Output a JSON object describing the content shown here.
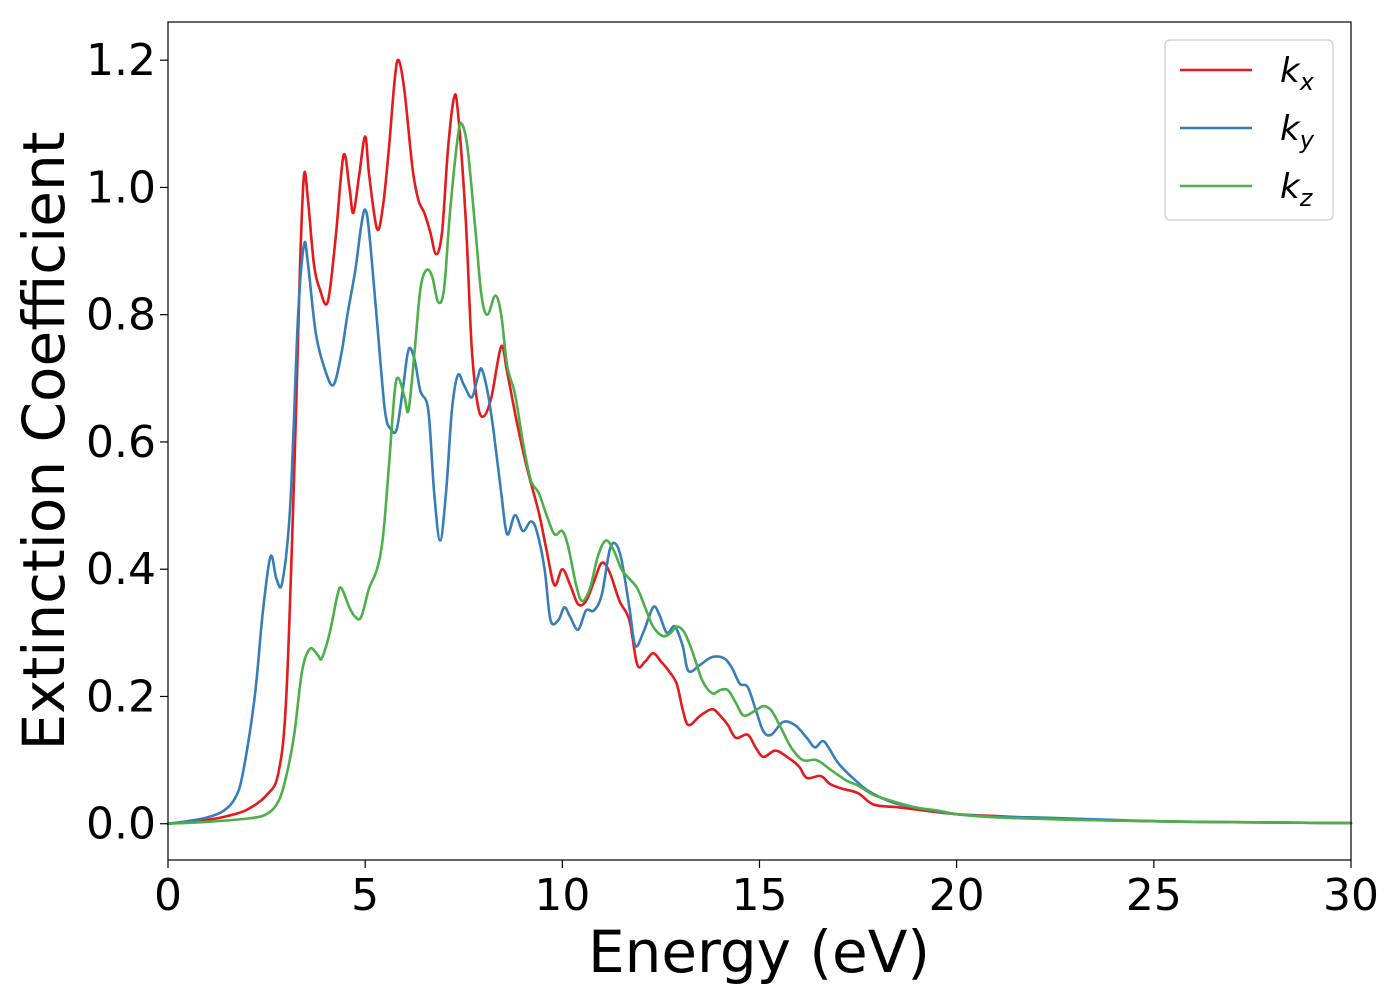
{
  "chart_data": {
    "type": "line",
    "title": "",
    "xlabel": "Energy (eV)",
    "ylabel": "Extinction Coefficient",
    "xlim": [
      0,
      30
    ],
    "ylim": [
      -0.057,
      1.26
    ],
    "x_ticks": [
      0,
      5,
      10,
      15,
      20,
      25,
      30
    ],
    "x_tick_labels": [
      "0",
      "5",
      "10",
      "15",
      "20",
      "25",
      "30"
    ],
    "y_ticks": [
      0.0,
      0.2,
      0.4,
      0.6,
      0.8,
      1.0,
      1.2
    ],
    "y_tick_labels": [
      "0.0",
      "0.2",
      "0.4",
      "0.6",
      "0.8",
      "1.0",
      "1.2"
    ],
    "grid": false,
    "legend_position": "top-right",
    "series": [
      {
        "name": "kx",
        "legend_base": "k",
        "legend_sub": "x",
        "color": "#e41a1c",
        "points": [
          [
            0,
            0
          ],
          [
            1,
            0.006
          ],
          [
            1.5,
            0.012
          ],
          [
            2,
            0.022
          ],
          [
            2.5,
            0.045
          ],
          [
            2.8,
            0.08
          ],
          [
            3.0,
            0.2
          ],
          [
            3.2,
            0.55
          ],
          [
            3.35,
            0.88
          ],
          [
            3.45,
            1.02
          ],
          [
            3.55,
            0.98
          ],
          [
            3.7,
            0.88
          ],
          [
            3.85,
            0.84
          ],
          [
            4.05,
            0.82
          ],
          [
            4.25,
            0.92
          ],
          [
            4.45,
            1.05
          ],
          [
            4.6,
            1.0
          ],
          [
            4.7,
            0.96
          ],
          [
            4.85,
            1.02
          ],
          [
            5.0,
            1.08
          ],
          [
            5.1,
            1.02
          ],
          [
            5.3,
            0.935
          ],
          [
            5.45,
            0.97
          ],
          [
            5.6,
            1.06
          ],
          [
            5.75,
            1.17
          ],
          [
            5.85,
            1.2
          ],
          [
            6.0,
            1.15
          ],
          [
            6.2,
            1.03
          ],
          [
            6.35,
            0.98
          ],
          [
            6.5,
            0.96
          ],
          [
            6.65,
            0.93
          ],
          [
            6.8,
            0.895
          ],
          [
            6.95,
            0.93
          ],
          [
            7.1,
            1.06
          ],
          [
            7.25,
            1.14
          ],
          [
            7.35,
            1.12
          ],
          [
            7.55,
            0.95
          ],
          [
            7.7,
            0.75
          ],
          [
            7.85,
            0.66
          ],
          [
            8.0,
            0.64
          ],
          [
            8.2,
            0.67
          ],
          [
            8.45,
            0.75
          ],
          [
            8.6,
            0.71
          ],
          [
            8.85,
            0.63
          ],
          [
            9.1,
            0.56
          ],
          [
            9.4,
            0.49
          ],
          [
            9.6,
            0.43
          ],
          [
            9.8,
            0.375
          ],
          [
            10.0,
            0.4
          ],
          [
            10.2,
            0.375
          ],
          [
            10.4,
            0.345
          ],
          [
            10.6,
            0.35
          ],
          [
            10.8,
            0.38
          ],
          [
            11.0,
            0.41
          ],
          [
            11.2,
            0.395
          ],
          [
            11.45,
            0.35
          ],
          [
            11.7,
            0.32
          ],
          [
            11.9,
            0.25
          ],
          [
            12.1,
            0.255
          ],
          [
            12.3,
            0.268
          ],
          [
            12.5,
            0.255
          ],
          [
            12.7,
            0.24
          ],
          [
            12.9,
            0.22
          ],
          [
            13.05,
            0.18
          ],
          [
            13.2,
            0.155
          ],
          [
            13.5,
            0.17
          ],
          [
            13.8,
            0.18
          ],
          [
            14.0,
            0.17
          ],
          [
            14.2,
            0.155
          ],
          [
            14.4,
            0.135
          ],
          [
            14.7,
            0.14
          ],
          [
            14.9,
            0.12
          ],
          [
            15.1,
            0.105
          ],
          [
            15.4,
            0.115
          ],
          [
            15.7,
            0.105
          ],
          [
            16.0,
            0.09
          ],
          [
            16.2,
            0.072
          ],
          [
            16.55,
            0.075
          ],
          [
            16.8,
            0.062
          ],
          [
            17.1,
            0.055
          ],
          [
            17.5,
            0.048
          ],
          [
            17.9,
            0.03
          ],
          [
            18.5,
            0.026
          ],
          [
            19,
            0.022
          ],
          [
            20,
            0.015
          ],
          [
            21,
            0.012
          ],
          [
            22,
            0.009
          ],
          [
            23,
            0.007
          ],
          [
            24,
            0.005
          ],
          [
            25,
            0.004
          ],
          [
            26,
            0.003
          ],
          [
            27,
            0.0025
          ],
          [
            28,
            0.002
          ],
          [
            29,
            0.0015
          ],
          [
            30,
            0.001
          ]
        ]
      },
      {
        "name": "ky",
        "legend_base": "k",
        "legend_sub": "y",
        "color": "#377eb8",
        "points": [
          [
            0,
            0
          ],
          [
            0.5,
            0.004
          ],
          [
            1,
            0.01
          ],
          [
            1.4,
            0.02
          ],
          [
            1.7,
            0.04
          ],
          [
            1.9,
            0.08
          ],
          [
            2.2,
            0.2
          ],
          [
            2.4,
            0.33
          ],
          [
            2.6,
            0.42
          ],
          [
            2.75,
            0.385
          ],
          [
            2.9,
            0.38
          ],
          [
            3.1,
            0.5
          ],
          [
            3.3,
            0.8
          ],
          [
            3.45,
            0.91
          ],
          [
            3.55,
            0.88
          ],
          [
            3.75,
            0.77
          ],
          [
            4.0,
            0.71
          ],
          [
            4.2,
            0.69
          ],
          [
            4.4,
            0.74
          ],
          [
            4.55,
            0.8
          ],
          [
            4.75,
            0.87
          ],
          [
            4.9,
            0.94
          ],
          [
            5.0,
            0.965
          ],
          [
            5.1,
            0.93
          ],
          [
            5.3,
            0.79
          ],
          [
            5.5,
            0.65
          ],
          [
            5.65,
            0.62
          ],
          [
            5.8,
            0.62
          ],
          [
            5.95,
            0.68
          ],
          [
            6.1,
            0.745
          ],
          [
            6.25,
            0.73
          ],
          [
            6.4,
            0.68
          ],
          [
            6.6,
            0.65
          ],
          [
            6.75,
            0.52
          ],
          [
            6.9,
            0.445
          ],
          [
            7.05,
            0.52
          ],
          [
            7.2,
            0.65
          ],
          [
            7.35,
            0.705
          ],
          [
            7.5,
            0.69
          ],
          [
            7.7,
            0.67
          ],
          [
            7.85,
            0.7
          ],
          [
            7.95,
            0.715
          ],
          [
            8.1,
            0.68
          ],
          [
            8.25,
            0.62
          ],
          [
            8.45,
            0.52
          ],
          [
            8.6,
            0.455
          ],
          [
            8.8,
            0.485
          ],
          [
            9.0,
            0.46
          ],
          [
            9.2,
            0.475
          ],
          [
            9.35,
            0.46
          ],
          [
            9.55,
            0.4
          ],
          [
            9.7,
            0.32
          ],
          [
            9.9,
            0.32
          ],
          [
            10.05,
            0.34
          ],
          [
            10.2,
            0.325
          ],
          [
            10.4,
            0.305
          ],
          [
            10.6,
            0.335
          ],
          [
            10.8,
            0.335
          ],
          [
            11.0,
            0.36
          ],
          [
            11.2,
            0.43
          ],
          [
            11.35,
            0.44
          ],
          [
            11.5,
            0.415
          ],
          [
            11.7,
            0.34
          ],
          [
            11.85,
            0.28
          ],
          [
            12.05,
            0.3
          ],
          [
            12.3,
            0.34
          ],
          [
            12.45,
            0.33
          ],
          [
            12.65,
            0.3
          ],
          [
            12.85,
            0.31
          ],
          [
            13.05,
            0.28
          ],
          [
            13.2,
            0.24
          ],
          [
            13.5,
            0.25
          ],
          [
            13.8,
            0.262
          ],
          [
            14.1,
            0.26
          ],
          [
            14.3,
            0.245
          ],
          [
            14.5,
            0.22
          ],
          [
            14.7,
            0.215
          ],
          [
            14.9,
            0.18
          ],
          [
            15.1,
            0.145
          ],
          [
            15.3,
            0.14
          ],
          [
            15.6,
            0.16
          ],
          [
            15.9,
            0.155
          ],
          [
            16.2,
            0.135
          ],
          [
            16.4,
            0.12
          ],
          [
            16.6,
            0.13
          ],
          [
            16.75,
            0.12
          ],
          [
            17.0,
            0.095
          ],
          [
            17.4,
            0.07
          ],
          [
            17.8,
            0.05
          ],
          [
            18.4,
            0.033
          ],
          [
            19,
            0.025
          ],
          [
            20,
            0.015
          ],
          [
            21,
            0.011
          ],
          [
            22,
            0.01
          ],
          [
            23,
            0.008
          ],
          [
            24,
            0.006
          ],
          [
            25,
            0.004
          ],
          [
            26,
            0.003
          ],
          [
            27,
            0.0025
          ],
          [
            28,
            0.002
          ],
          [
            29,
            0.0015
          ],
          [
            30,
            0.001
          ]
        ]
      },
      {
        "name": "kz",
        "legend_base": "k",
        "legend_sub": "z",
        "color": "#4daf4a",
        "points": [
          [
            0,
            0
          ],
          [
            1,
            0.003
          ],
          [
            2,
            0.008
          ],
          [
            2.5,
            0.015
          ],
          [
            2.8,
            0.035
          ],
          [
            3.0,
            0.075
          ],
          [
            3.2,
            0.14
          ],
          [
            3.4,
            0.24
          ],
          [
            3.6,
            0.275
          ],
          [
            3.8,
            0.265
          ],
          [
            3.9,
            0.26
          ],
          [
            4.1,
            0.3
          ],
          [
            4.3,
            0.36
          ],
          [
            4.4,
            0.37
          ],
          [
            4.6,
            0.34
          ],
          [
            4.75,
            0.325
          ],
          [
            4.9,
            0.325
          ],
          [
            5.1,
            0.37
          ],
          [
            5.3,
            0.4
          ],
          [
            5.45,
            0.45
          ],
          [
            5.6,
            0.56
          ],
          [
            5.75,
            0.68
          ],
          [
            5.85,
            0.7
          ],
          [
            6.0,
            0.67
          ],
          [
            6.1,
            0.65
          ],
          [
            6.25,
            0.74
          ],
          [
            6.4,
            0.84
          ],
          [
            6.55,
            0.87
          ],
          [
            6.7,
            0.86
          ],
          [
            6.85,
            0.82
          ],
          [
            7.0,
            0.84
          ],
          [
            7.15,
            0.96
          ],
          [
            7.35,
            1.08
          ],
          [
            7.45,
            1.1
          ],
          [
            7.6,
            1.06
          ],
          [
            7.8,
            0.93
          ],
          [
            7.95,
            0.83
          ],
          [
            8.1,
            0.8
          ],
          [
            8.3,
            0.83
          ],
          [
            8.45,
            0.8
          ],
          [
            8.6,
            0.72
          ],
          [
            8.8,
            0.675
          ],
          [
            9.0,
            0.6
          ],
          [
            9.2,
            0.54
          ],
          [
            9.4,
            0.52
          ],
          [
            9.6,
            0.485
          ],
          [
            9.8,
            0.455
          ],
          [
            10.0,
            0.46
          ],
          [
            10.15,
            0.435
          ],
          [
            10.35,
            0.375
          ],
          [
            10.5,
            0.35
          ],
          [
            10.7,
            0.37
          ],
          [
            10.9,
            0.42
          ],
          [
            11.1,
            0.445
          ],
          [
            11.3,
            0.43
          ],
          [
            11.5,
            0.4
          ],
          [
            11.7,
            0.385
          ],
          [
            11.9,
            0.37
          ],
          [
            12.1,
            0.34
          ],
          [
            12.3,
            0.31
          ],
          [
            12.55,
            0.295
          ],
          [
            12.75,
            0.3
          ],
          [
            12.9,
            0.31
          ],
          [
            13.1,
            0.3
          ],
          [
            13.3,
            0.27
          ],
          [
            13.55,
            0.225
          ],
          [
            13.8,
            0.205
          ],
          [
            14.0,
            0.21
          ],
          [
            14.2,
            0.21
          ],
          [
            14.4,
            0.19
          ],
          [
            14.6,
            0.17
          ],
          [
            14.9,
            0.178
          ],
          [
            15.1,
            0.185
          ],
          [
            15.3,
            0.178
          ],
          [
            15.55,
            0.15
          ],
          [
            15.8,
            0.12
          ],
          [
            16.1,
            0.1
          ],
          [
            16.45,
            0.1
          ],
          [
            16.8,
            0.085
          ],
          [
            17.2,
            0.068
          ],
          [
            17.5,
            0.06
          ],
          [
            17.9,
            0.045
          ],
          [
            18.4,
            0.035
          ],
          [
            19,
            0.025
          ],
          [
            19.5,
            0.021
          ],
          [
            20,
            0.015
          ],
          [
            21,
            0.01
          ],
          [
            22,
            0.008
          ],
          [
            23,
            0.006
          ],
          [
            24,
            0.005
          ],
          [
            25,
            0.004
          ],
          [
            26,
            0.003
          ],
          [
            27,
            0.0025
          ],
          [
            28,
            0.002
          ],
          [
            29,
            0.0015
          ],
          [
            30,
            0.001
          ]
        ]
      }
    ]
  }
}
